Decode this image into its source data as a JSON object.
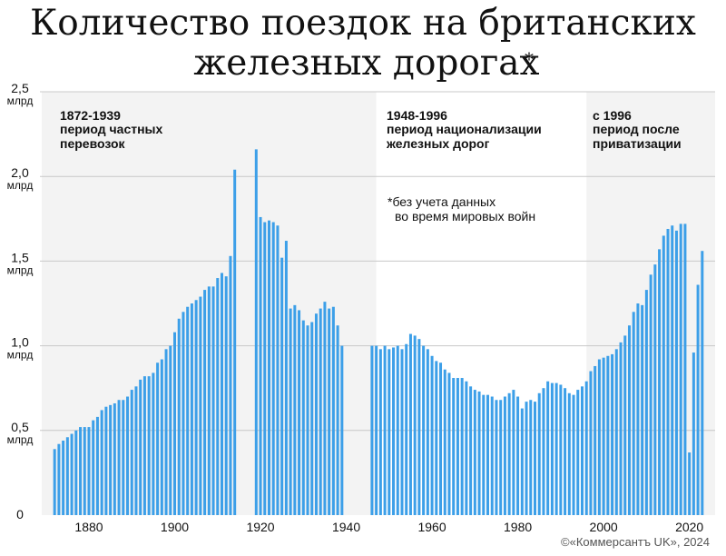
{
  "title": {
    "line1": "Количество поездок на британских",
    "line2": "железных дорогах",
    "asterisk": "*"
  },
  "note": {
    "line1": "*без учета данных",
    "line2": "во время мировых войн"
  },
  "credit": "©«Коммерсантъ UK», 2024",
  "colors": {
    "bar": "#3c9fe8",
    "shade": "#f3f3f3",
    "grid": "#c8c8c8"
  },
  "chart_data": {
    "type": "bar",
    "ylim": [
      0,
      2.5
    ],
    "xlim": [
      1869,
      2026
    ],
    "y_ticks": [
      {
        "value": 2.5,
        "label": "2,5",
        "unit": "млрд"
      },
      {
        "value": 2.0,
        "label": "2,0",
        "unit": "млрд"
      },
      {
        "value": 1.5,
        "label": "1,5",
        "unit": "млрд"
      },
      {
        "value": 1.0,
        "label": "1,0",
        "unit": "млрд"
      },
      {
        "value": 0.5,
        "label": "0,5",
        "unit": "млрд"
      },
      {
        "value": 0,
        "label": "0",
        "unit": ""
      }
    ],
    "x_ticks": [
      {
        "value": 1880,
        "label": "1880"
      },
      {
        "value": 1900,
        "label": "1900"
      },
      {
        "value": 1920,
        "label": "1920"
      },
      {
        "value": 1940,
        "label": "1940"
      },
      {
        "value": 1960,
        "label": "1960"
      },
      {
        "value": 1980,
        "label": "1980"
      },
      {
        "value": 2000,
        "label": "2000"
      },
      {
        "value": 2020,
        "label": "2020"
      }
    ],
    "periods": [
      {
        "start": 1869,
        "end": 1947,
        "title": "1872-1939",
        "desc1": "период частных",
        "desc2": "перевозок",
        "shaded": true
      },
      {
        "start": 1947,
        "end": 1996,
        "title": "1948-1996",
        "desc1": "период национализации",
        "desc2": "железных дорог",
        "shaded": false
      },
      {
        "start": 1996,
        "end": 2026,
        "title": "с 1996",
        "desc1": "период после",
        "desc2": "приватизации",
        "shaded": true
      }
    ],
    "series": [
      {
        "x": [
          1872,
          1873,
          1874,
          1875,
          1876,
          1877,
          1878,
          1879,
          1880,
          1881,
          1882,
          1883,
          1884,
          1885,
          1886,
          1887,
          1888,
          1889,
          1890,
          1891,
          1892,
          1893,
          1894,
          1895,
          1896,
          1897,
          1898,
          1899,
          1900,
          1901,
          1902,
          1903,
          1904,
          1905,
          1906,
          1907,
          1908,
          1909,
          1910,
          1911,
          1912,
          1913,
          1914,
          1919,
          1920,
          1921,
          1922,
          1923,
          1924,
          1925,
          1926,
          1927,
          1928,
          1929,
          1930,
          1931,
          1932,
          1933,
          1934,
          1935,
          1936,
          1937,
          1938,
          1939,
          1946,
          1947,
          1948,
          1949,
          1950,
          1951,
          1952,
          1953,
          1954,
          1955,
          1956,
          1957,
          1958,
          1959,
          1960,
          1961,
          1962,
          1963,
          1964,
          1965,
          1966,
          1967,
          1968,
          1969,
          1970,
          1971,
          1972,
          1973,
          1974,
          1975,
          1976,
          1977,
          1978,
          1979,
          1980,
          1981,
          1982,
          1983,
          1984,
          1985,
          1986,
          1987,
          1988,
          1989,
          1990,
          1991,
          1992,
          1993,
          1994,
          1995,
          1996,
          1997,
          1998,
          1999,
          2000,
          2001,
          2002,
          2003,
          2004,
          2005,
          2006,
          2007,
          2008,
          2009,
          2010,
          2011,
          2012,
          2013,
          2014,
          2015,
          2016,
          2017,
          2018,
          2019,
          2020,
          2021,
          2022,
          2023
        ],
        "values": [
          0.39,
          0.42,
          0.44,
          0.46,
          0.48,
          0.5,
          0.52,
          0.52,
          0.52,
          0.56,
          0.58,
          0.62,
          0.64,
          0.65,
          0.66,
          0.68,
          0.68,
          0.7,
          0.74,
          0.76,
          0.8,
          0.82,
          0.82,
          0.84,
          0.9,
          0.92,
          0.98,
          1.0,
          1.08,
          1.16,
          1.2,
          1.23,
          1.25,
          1.27,
          1.29,
          1.33,
          1.35,
          1.35,
          1.4,
          1.43,
          1.41,
          1.53,
          2.04,
          2.16,
          1.76,
          1.73,
          1.74,
          1.73,
          1.71,
          1.52,
          1.62,
          1.22,
          1.24,
          1.21,
          1.15,
          1.12,
          1.14,
          1.19,
          1.22,
          1.26,
          1.22,
          1.23,
          1.12,
          1.0,
          1.0,
          1.0,
          0.98,
          1.0,
          0.98,
          0.99,
          1.0,
          0.98,
          1.01,
          1.07,
          1.06,
          1.04,
          1.0,
          0.98,
          0.94,
          0.91,
          0.9,
          0.86,
          0.84,
          0.81,
          0.81,
          0.81,
          0.79,
          0.76,
          0.74,
          0.73,
          0.71,
          0.71,
          0.7,
          0.68,
          0.68,
          0.7,
          0.72,
          0.74,
          0.7,
          0.63,
          0.67,
          0.68,
          0.67,
          0.72,
          0.75,
          0.79,
          0.78,
          0.78,
          0.77,
          0.75,
          0.72,
          0.71,
          0.74,
          0.76,
          0.79,
          0.85,
          0.88,
          0.92,
          0.93,
          0.94,
          0.95,
          0.98,
          1.02,
          1.06,
          1.12,
          1.2,
          1.25,
          1.24,
          1.33,
          1.42,
          1.48,
          1.57,
          1.65,
          1.69,
          1.71,
          1.68,
          1.72,
          1.72,
          0.37,
          0.96,
          1.36,
          1.56
        ]
      }
    ]
  }
}
